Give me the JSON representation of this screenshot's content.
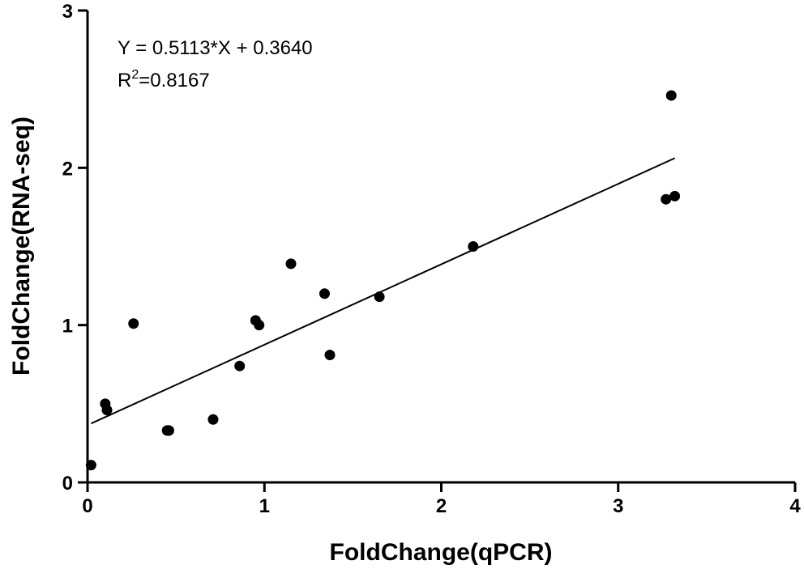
{
  "chart_data": {
    "type": "scatter",
    "xlabel": "FoldChange(qPCR)",
    "ylabel": "FoldChange(RNA-seq)",
    "xlim": [
      0,
      4
    ],
    "ylim": [
      0,
      3
    ],
    "x_ticks": [
      "0",
      "1",
      "2",
      "3",
      "4"
    ],
    "y_ticks": [
      "0",
      "1",
      "2",
      "3"
    ],
    "points": [
      {
        "x": 0.02,
        "y": 0.11
      },
      {
        "x": 0.1,
        "y": 0.5
      },
      {
        "x": 0.11,
        "y": 0.46
      },
      {
        "x": 0.26,
        "y": 1.01
      },
      {
        "x": 0.45,
        "y": 0.33
      },
      {
        "x": 0.46,
        "y": 0.33
      },
      {
        "x": 0.71,
        "y": 0.4
      },
      {
        "x": 0.86,
        "y": 0.74
      },
      {
        "x": 0.95,
        "y": 1.03
      },
      {
        "x": 0.97,
        "y": 1.0
      },
      {
        "x": 1.15,
        "y": 1.39
      },
      {
        "x": 1.34,
        "y": 1.2
      },
      {
        "x": 1.37,
        "y": 0.81
      },
      {
        "x": 1.65,
        "y": 1.18
      },
      {
        "x": 2.18,
        "y": 1.5
      },
      {
        "x": 3.27,
        "y": 1.8
      },
      {
        "x": 3.3,
        "y": 2.46
      },
      {
        "x": 3.32,
        "y": 1.82
      }
    ],
    "fit_line": {
      "slope": 0.5113,
      "intercept": 0.364,
      "x_range": [
        0.02,
        3.32
      ]
    },
    "annotations": {
      "equation": "Y = 0.5113*X + 0.3640",
      "r2_prefix": "R",
      "r2_superscript": "2",
      "r2_value": "=0.8167"
    },
    "grid": false,
    "legend": "none"
  }
}
